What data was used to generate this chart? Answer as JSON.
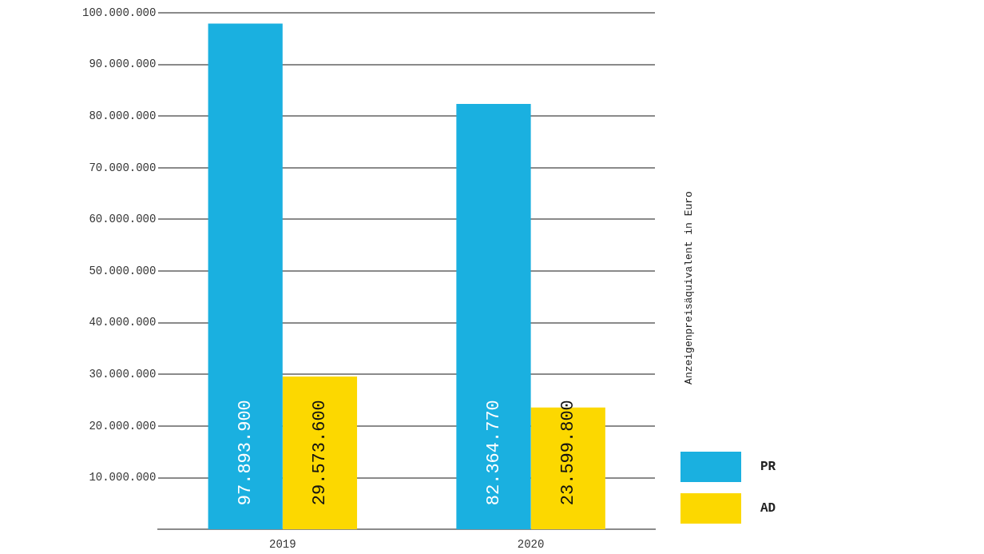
{
  "chart_data": {
    "type": "bar",
    "ylabel": "Anzeigenpreisäquivalent in Euro",
    "categories": [
      "2019",
      "2020"
    ],
    "series": [
      {
        "name": "PR",
        "color": "#1ab0e0",
        "values": [
          97893900,
          82364770
        ],
        "value_labels": [
          "97.893.900",
          "82.364.770"
        ]
      },
      {
        "name": "AD",
        "color": "#fcd800",
        "values": [
          29573600,
          23599800
        ],
        "value_labels": [
          "29.573.600",
          "23.599.800"
        ]
      }
    ],
    "ylim": [
      0,
      100000000
    ],
    "yticks": [
      {
        "value": 10000000,
        "label": "10.000.000"
      },
      {
        "value": 20000000,
        "label": "20.000.000"
      },
      {
        "value": 30000000,
        "label": "30.000.000"
      },
      {
        "value": 40000000,
        "label": "40.000.000"
      },
      {
        "value": 50000000,
        "label": "50.000.000"
      },
      {
        "value": 60000000,
        "label": "60.000.000"
      },
      {
        "value": 70000000,
        "label": "70.000.000"
      },
      {
        "value": 80000000,
        "label": "80.000.000"
      },
      {
        "value": 90000000,
        "label": "90.000.000"
      },
      {
        "value": 100000000,
        "label": "100.000.000"
      }
    ],
    "grid": "y",
    "legend": "right"
  }
}
